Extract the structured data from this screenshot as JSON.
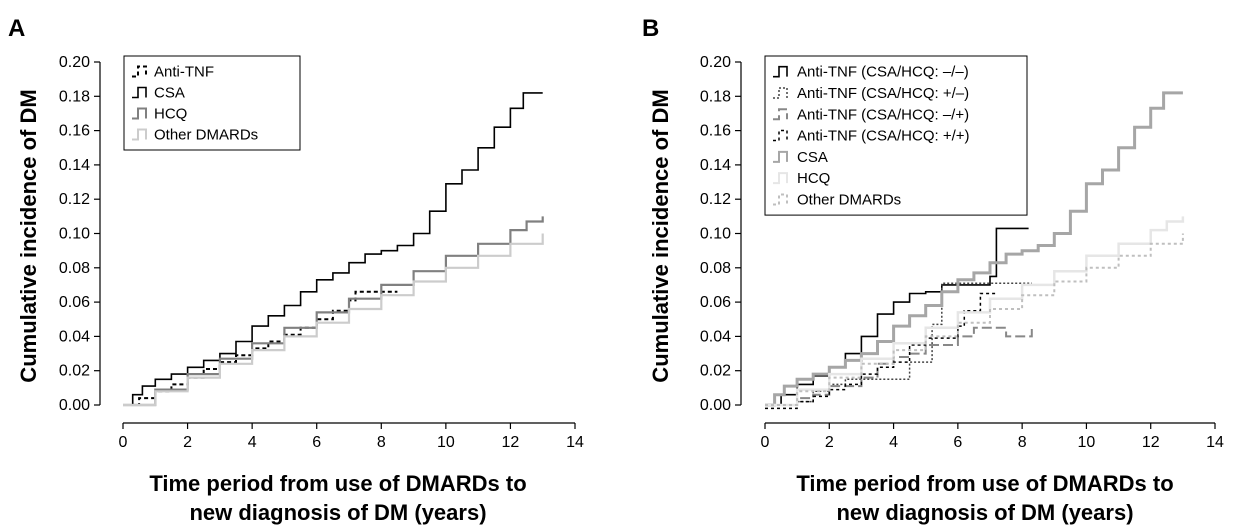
{
  "chart_data": [
    {
      "panel": "A",
      "type": "line",
      "ylabel": "Cumulative incidence of DM",
      "xlabel_lines": [
        "Time period from use of DMARDs to",
        "new diagnosis of DM (years)"
      ],
      "xlim": [
        0,
        14
      ],
      "ylim": [
        0,
        0.2
      ],
      "x_ticks": [
        "0",
        "2",
        "4",
        "6",
        "8",
        "10",
        "12",
        "14"
      ],
      "y_ticks": [
        "0.00",
        "0.02",
        "0.04",
        "0.06",
        "0.08",
        "0.10",
        "0.12",
        "0.14",
        "0.16",
        "0.18",
        "0.20"
      ],
      "legend_position": "top-left",
      "grid": false,
      "series": [
        {
          "name": "Anti-TNF",
          "color": "#000000",
          "dash": "4,3",
          "width": 2,
          "points": [
            [
              0,
              0
            ],
            [
              0.5,
              0.004
            ],
            [
              1,
              0.008
            ],
            [
              1.5,
              0.012
            ],
            [
              2,
              0.016
            ],
            [
              2.5,
              0.021
            ],
            [
              3,
              0.025
            ],
            [
              3.5,
              0.029
            ],
            [
              4,
              0.033
            ],
            [
              4.5,
              0.037
            ],
            [
              5,
              0.041
            ],
            [
              5.5,
              0.045
            ],
            [
              6,
              0.05
            ],
            [
              6.5,
              0.055
            ],
            [
              7,
              0.061
            ],
            [
              7.2,
              0.066
            ],
            [
              8.5,
              0.066
            ]
          ]
        },
        {
          "name": "CSA",
          "color": "#000000",
          "dash": "",
          "width": 1.6,
          "points": [
            [
              0,
              0
            ],
            [
              0.3,
              0.006
            ],
            [
              0.6,
              0.011
            ],
            [
              1,
              0.015
            ],
            [
              1.5,
              0.018
            ],
            [
              2,
              0.022
            ],
            [
              2.5,
              0.026
            ],
            [
              3,
              0.03
            ],
            [
              3.5,
              0.037
            ],
            [
              4,
              0.046
            ],
            [
              4.5,
              0.052
            ],
            [
              5,
              0.058
            ],
            [
              5.5,
              0.066
            ],
            [
              6,
              0.073
            ],
            [
              6.5,
              0.077
            ],
            [
              7,
              0.083
            ],
            [
              7.5,
              0.088
            ],
            [
              8,
              0.09
            ],
            [
              8.5,
              0.093
            ],
            [
              9,
              0.1
            ],
            [
              9.5,
              0.113
            ],
            [
              10,
              0.129
            ],
            [
              10.5,
              0.137
            ],
            [
              11,
              0.15
            ],
            [
              11.5,
              0.162
            ],
            [
              12,
              0.173
            ],
            [
              12.4,
              0.182
            ],
            [
              13,
              0.182
            ]
          ]
        },
        {
          "name": "HCQ",
          "color": "#808080",
          "dash": "",
          "width": 2.2,
          "points": [
            [
              0,
              0
            ],
            [
              1,
              0.009
            ],
            [
              2,
              0.018
            ],
            [
              3,
              0.027
            ],
            [
              4,
              0.036
            ],
            [
              5,
              0.045
            ],
            [
              6,
              0.054
            ],
            [
              7,
              0.062
            ],
            [
              8,
              0.07
            ],
            [
              9,
              0.078
            ],
            [
              10,
              0.087
            ],
            [
              11,
              0.094
            ],
            [
              12,
              0.102
            ],
            [
              12.5,
              0.107
            ],
            [
              13,
              0.11
            ]
          ]
        },
        {
          "name": "Other DMARDs",
          "color": "#cccccc",
          "dash": "",
          "width": 2.2,
          "points": [
            [
              0,
              0
            ],
            [
              1,
              0.008
            ],
            [
              2,
              0.016
            ],
            [
              3,
              0.024
            ],
            [
              4,
              0.032
            ],
            [
              5,
              0.04
            ],
            [
              6,
              0.048
            ],
            [
              7,
              0.056
            ],
            [
              8,
              0.064
            ],
            [
              9,
              0.072
            ],
            [
              10,
              0.08
            ],
            [
              11,
              0.087
            ],
            [
              12,
              0.094
            ],
            [
              13,
              0.1
            ]
          ]
        }
      ]
    },
    {
      "panel": "B",
      "type": "line",
      "ylabel": "Cumulative incidence of DM",
      "xlabel_lines": [
        "Time period from use of DMARDs to",
        "new diagnosis of DM (years)"
      ],
      "xlim": [
        0,
        14
      ],
      "ylim": [
        0,
        0.2
      ],
      "x_ticks": [
        "0",
        "2",
        "4",
        "6",
        "8",
        "10",
        "12",
        "14"
      ],
      "y_ticks": [
        "0.00",
        "0.02",
        "0.04",
        "0.06",
        "0.08",
        "0.10",
        "0.12",
        "0.14",
        "0.16",
        "0.18",
        "0.20"
      ],
      "legend_position": "top-left",
      "grid": false,
      "series": [
        {
          "name": "Anti-TNF (CSA/HCQ: –/–)",
          "color": "#000000",
          "dash": "",
          "width": 1.6,
          "points": [
            [
              0,
              0
            ],
            [
              0.5,
              0.006
            ],
            [
              1,
              0.012
            ],
            [
              1.5,
              0.017
            ],
            [
              2,
              0.022
            ],
            [
              2.5,
              0.03
            ],
            [
              3,
              0.04
            ],
            [
              3.5,
              0.053
            ],
            [
              4,
              0.06
            ],
            [
              4.5,
              0.065
            ],
            [
              5,
              0.066
            ],
            [
              5.5,
              0.07
            ],
            [
              6.5,
              0.07
            ],
            [
              7,
              0.075
            ],
            [
              7.2,
              0.103
            ],
            [
              8.2,
              0.103
            ]
          ]
        },
        {
          "name": "Anti-TNF (CSA/HCQ: +/–)",
          "color": "#444444",
          "dash": "2,2",
          "width": 1.5,
          "points": [
            [
              0,
              0
            ],
            [
              1,
              0.002
            ],
            [
              1.5,
              0.008
            ],
            [
              2,
              0.012
            ],
            [
              2.5,
              0.015
            ],
            [
              3,
              0.015
            ],
            [
              4.5,
              0.015
            ],
            [
              4.5,
              0.025
            ],
            [
              5.2,
              0.025
            ],
            [
              5.2,
              0.047
            ],
            [
              5.5,
              0.047
            ],
            [
              5.5,
              0.071
            ],
            [
              8.3,
              0.071
            ]
          ]
        },
        {
          "name": "Anti-TNF (CSA/HCQ: –/+)",
          "color": "#888888",
          "dash": "10,4",
          "width": 2,
          "points": [
            [
              0,
              0
            ],
            [
              1,
              0.004
            ],
            [
              1.5,
              0.006
            ],
            [
              2,
              0.011
            ],
            [
              3,
              0.016
            ],
            [
              3.5,
              0.024
            ],
            [
              4,
              0.028
            ],
            [
              4.5,
              0.03
            ],
            [
              5,
              0.035
            ],
            [
              6,
              0.04
            ],
            [
              6.5,
              0.045
            ],
            [
              7,
              0.045
            ],
            [
              7.5,
              0.04
            ],
            [
              8.3,
              0.045
            ]
          ]
        },
        {
          "name": "Anti-TNF (CSA/HCQ: +/+)",
          "color": "#000000",
          "dash": "3,3",
          "width": 1.5,
          "points": [
            [
              0,
              -0.002
            ],
            [
              1,
              0.002
            ],
            [
              1.5,
              0.005
            ],
            [
              2,
              0.009
            ],
            [
              2.5,
              0.012
            ],
            [
              3,
              0.018
            ],
            [
              3.5,
              0.022
            ],
            [
              4,
              0.025
            ],
            [
              4.5,
              0.035
            ],
            [
              5,
              0.039
            ],
            [
              6,
              0.046
            ],
            [
              6.2,
              0.055
            ],
            [
              6.7,
              0.065
            ],
            [
              7.2,
              0.065
            ]
          ]
        },
        {
          "name": "CSA",
          "color": "#a6a6a6",
          "dash": "",
          "width": 3,
          "points": [
            [
              0,
              0
            ],
            [
              0.3,
              0.006
            ],
            [
              0.6,
              0.011
            ],
            [
              1,
              0.015
            ],
            [
              1.5,
              0.018
            ],
            [
              2,
              0.022
            ],
            [
              2.5,
              0.026
            ],
            [
              3,
              0.03
            ],
            [
              3.5,
              0.037
            ],
            [
              4,
              0.046
            ],
            [
              4.5,
              0.052
            ],
            [
              5,
              0.058
            ],
            [
              5.5,
              0.066
            ],
            [
              6,
              0.073
            ],
            [
              6.5,
              0.077
            ],
            [
              7,
              0.083
            ],
            [
              7.5,
              0.088
            ],
            [
              8,
              0.09
            ],
            [
              8.5,
              0.093
            ],
            [
              9,
              0.1
            ],
            [
              9.5,
              0.113
            ],
            [
              10,
              0.129
            ],
            [
              10.5,
              0.137
            ],
            [
              11,
              0.15
            ],
            [
              11.5,
              0.162
            ],
            [
              12,
              0.173
            ],
            [
              12.4,
              0.182
            ],
            [
              13,
              0.182
            ]
          ]
        },
        {
          "name": "HCQ",
          "color": "#e6e6e6",
          "dash": "",
          "width": 2.5,
          "points": [
            [
              0,
              0
            ],
            [
              1,
              0.009
            ],
            [
              2,
              0.018
            ],
            [
              3,
              0.027
            ],
            [
              4,
              0.036
            ],
            [
              5,
              0.045
            ],
            [
              6,
              0.054
            ],
            [
              7,
              0.062
            ],
            [
              8,
              0.07
            ],
            [
              9,
              0.078
            ],
            [
              10,
              0.087
            ],
            [
              11,
              0.094
            ],
            [
              12,
              0.102
            ],
            [
              12.5,
              0.107
            ],
            [
              13,
              0.11
            ]
          ]
        },
        {
          "name": "Other DMARDs",
          "color": "#bfbfbf",
          "dash": "3,3",
          "width": 2,
          "points": [
            [
              0,
              0
            ],
            [
              1,
              0.008
            ],
            [
              2,
              0.016
            ],
            [
              3,
              0.024
            ],
            [
              4,
              0.032
            ],
            [
              5,
              0.04
            ],
            [
              6,
              0.048
            ],
            [
              7,
              0.056
            ],
            [
              8,
              0.064
            ],
            [
              9,
              0.072
            ],
            [
              10,
              0.08
            ],
            [
              11,
              0.087
            ],
            [
              12,
              0.094
            ],
            [
              13,
              0.1
            ]
          ]
        }
      ]
    }
  ]
}
